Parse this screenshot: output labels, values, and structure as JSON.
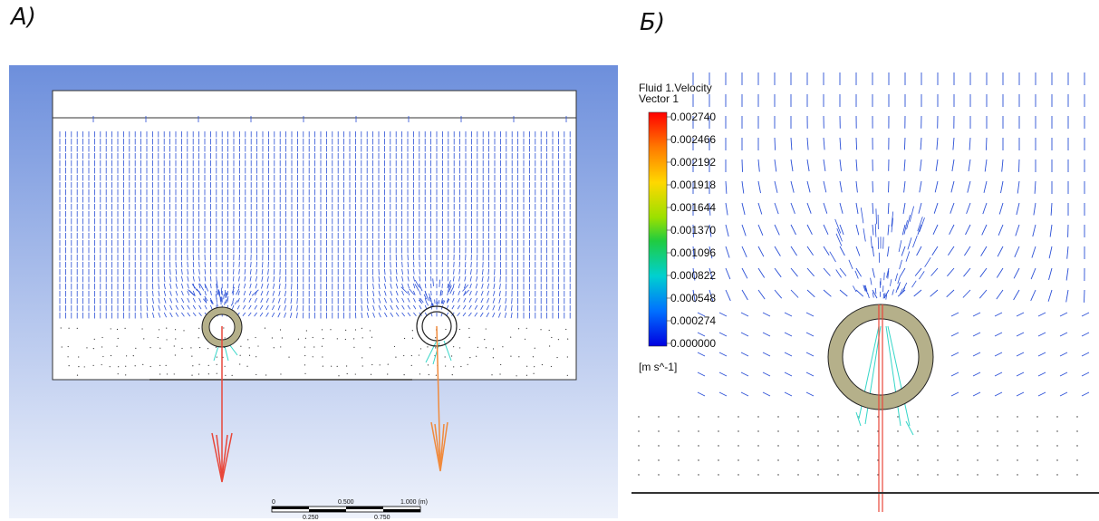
{
  "panels": {
    "a_label": "A)",
    "b_label": "Б)"
  },
  "legend": {
    "title_line1": "Fluid 1.Velocity",
    "title_line2": "Vector 1",
    "values": [
      "0.002740",
      "0.002466",
      "0.002192",
      "0.001918",
      "0.001644",
      "0.001370",
      "0.001096",
      "0.000822",
      "0.000548",
      "0.000274",
      "0.000000"
    ],
    "unit": "[m s^-1]",
    "colors": [
      "#ff0000",
      "#ff6a00",
      "#ffcc00",
      "#c8e600",
      "#55dd00",
      "#00cc66",
      "#00cccc",
      "#0099ff",
      "#0044ff",
      "#0000e6"
    ]
  },
  "scale_bar": {
    "top_labels": [
      "0",
      "0.500",
      "1.000  (m)"
    ],
    "bottom_labels": [
      "0.250",
      "0.750"
    ]
  },
  "colors": {
    "vector_blue": "#2a4fd6",
    "ring_fill": "#b5b08a",
    "arrow_red": "#e8473a",
    "arrow_orange": "#f08a3c",
    "bg_gradient_top": "#6d8fdc",
    "bg_gradient_bottom": "#eef2fb"
  }
}
